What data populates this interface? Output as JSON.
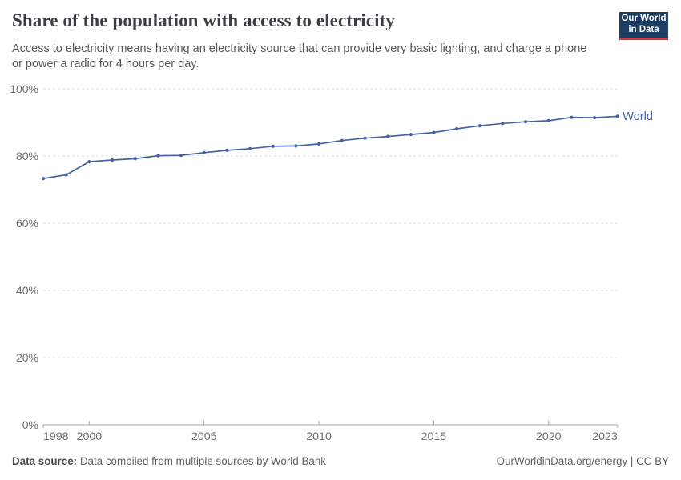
{
  "header": {
    "title": "Share of the population with access to electricity",
    "subtitle": {
      "line1": "Access to electricity means having an electricity source that can provide very basic lighting, and charge a phone",
      "line2": "or power a radio for 4 hours per day."
    },
    "logo": {
      "line1": "Our World",
      "line2": "in Data"
    }
  },
  "colors": {
    "line": "#4463a5",
    "logo_bg": "#1d3d63",
    "logo_stripe": "#d7383c",
    "grid": "#dddddd",
    "axis": "#a7a7a7",
    "tick_label": "#6e6e6e",
    "title_text": "#3b3e42",
    "subtitle_text": "#575757"
  },
  "chart_data": {
    "type": "line",
    "title": "Share of the population with access to electricity",
    "xlabel": "",
    "ylabel": "",
    "ylim": [
      0,
      100
    ],
    "yticks": [
      0,
      20,
      40,
      60,
      80,
      100
    ],
    "ytick_suffix": "%",
    "xticks": [
      1998,
      2000,
      2005,
      2010,
      2015,
      2020,
      2023
    ],
    "x_range": [
      1998,
      2023
    ],
    "grid": "horizontal-dashed",
    "legend": "end-of-line-label",
    "series": [
      {
        "name": "World",
        "color": "#4463a5",
        "x": [
          1998,
          1999,
          2000,
          2001,
          2002,
          2003,
          2004,
          2005,
          2006,
          2007,
          2008,
          2009,
          2010,
          2011,
          2012,
          2013,
          2014,
          2015,
          2016,
          2017,
          2018,
          2019,
          2020,
          2021,
          2022,
          2023
        ],
        "values": [
          73.3,
          74.4,
          78.3,
          78.8,
          79.2,
          80.1,
          80.2,
          81.0,
          81.7,
          82.2,
          82.9,
          83.0,
          83.6,
          84.6,
          85.3,
          85.8,
          86.4,
          87.0,
          88.1,
          89.0,
          89.7,
          90.2,
          90.5,
          91.5,
          91.4,
          91.8
        ]
      }
    ]
  },
  "footer": {
    "source_label": "Data source:",
    "source_text": " Data compiled from multiple sources by World Bank",
    "credit": "OurWorldinData.org/energy | CC BY"
  }
}
